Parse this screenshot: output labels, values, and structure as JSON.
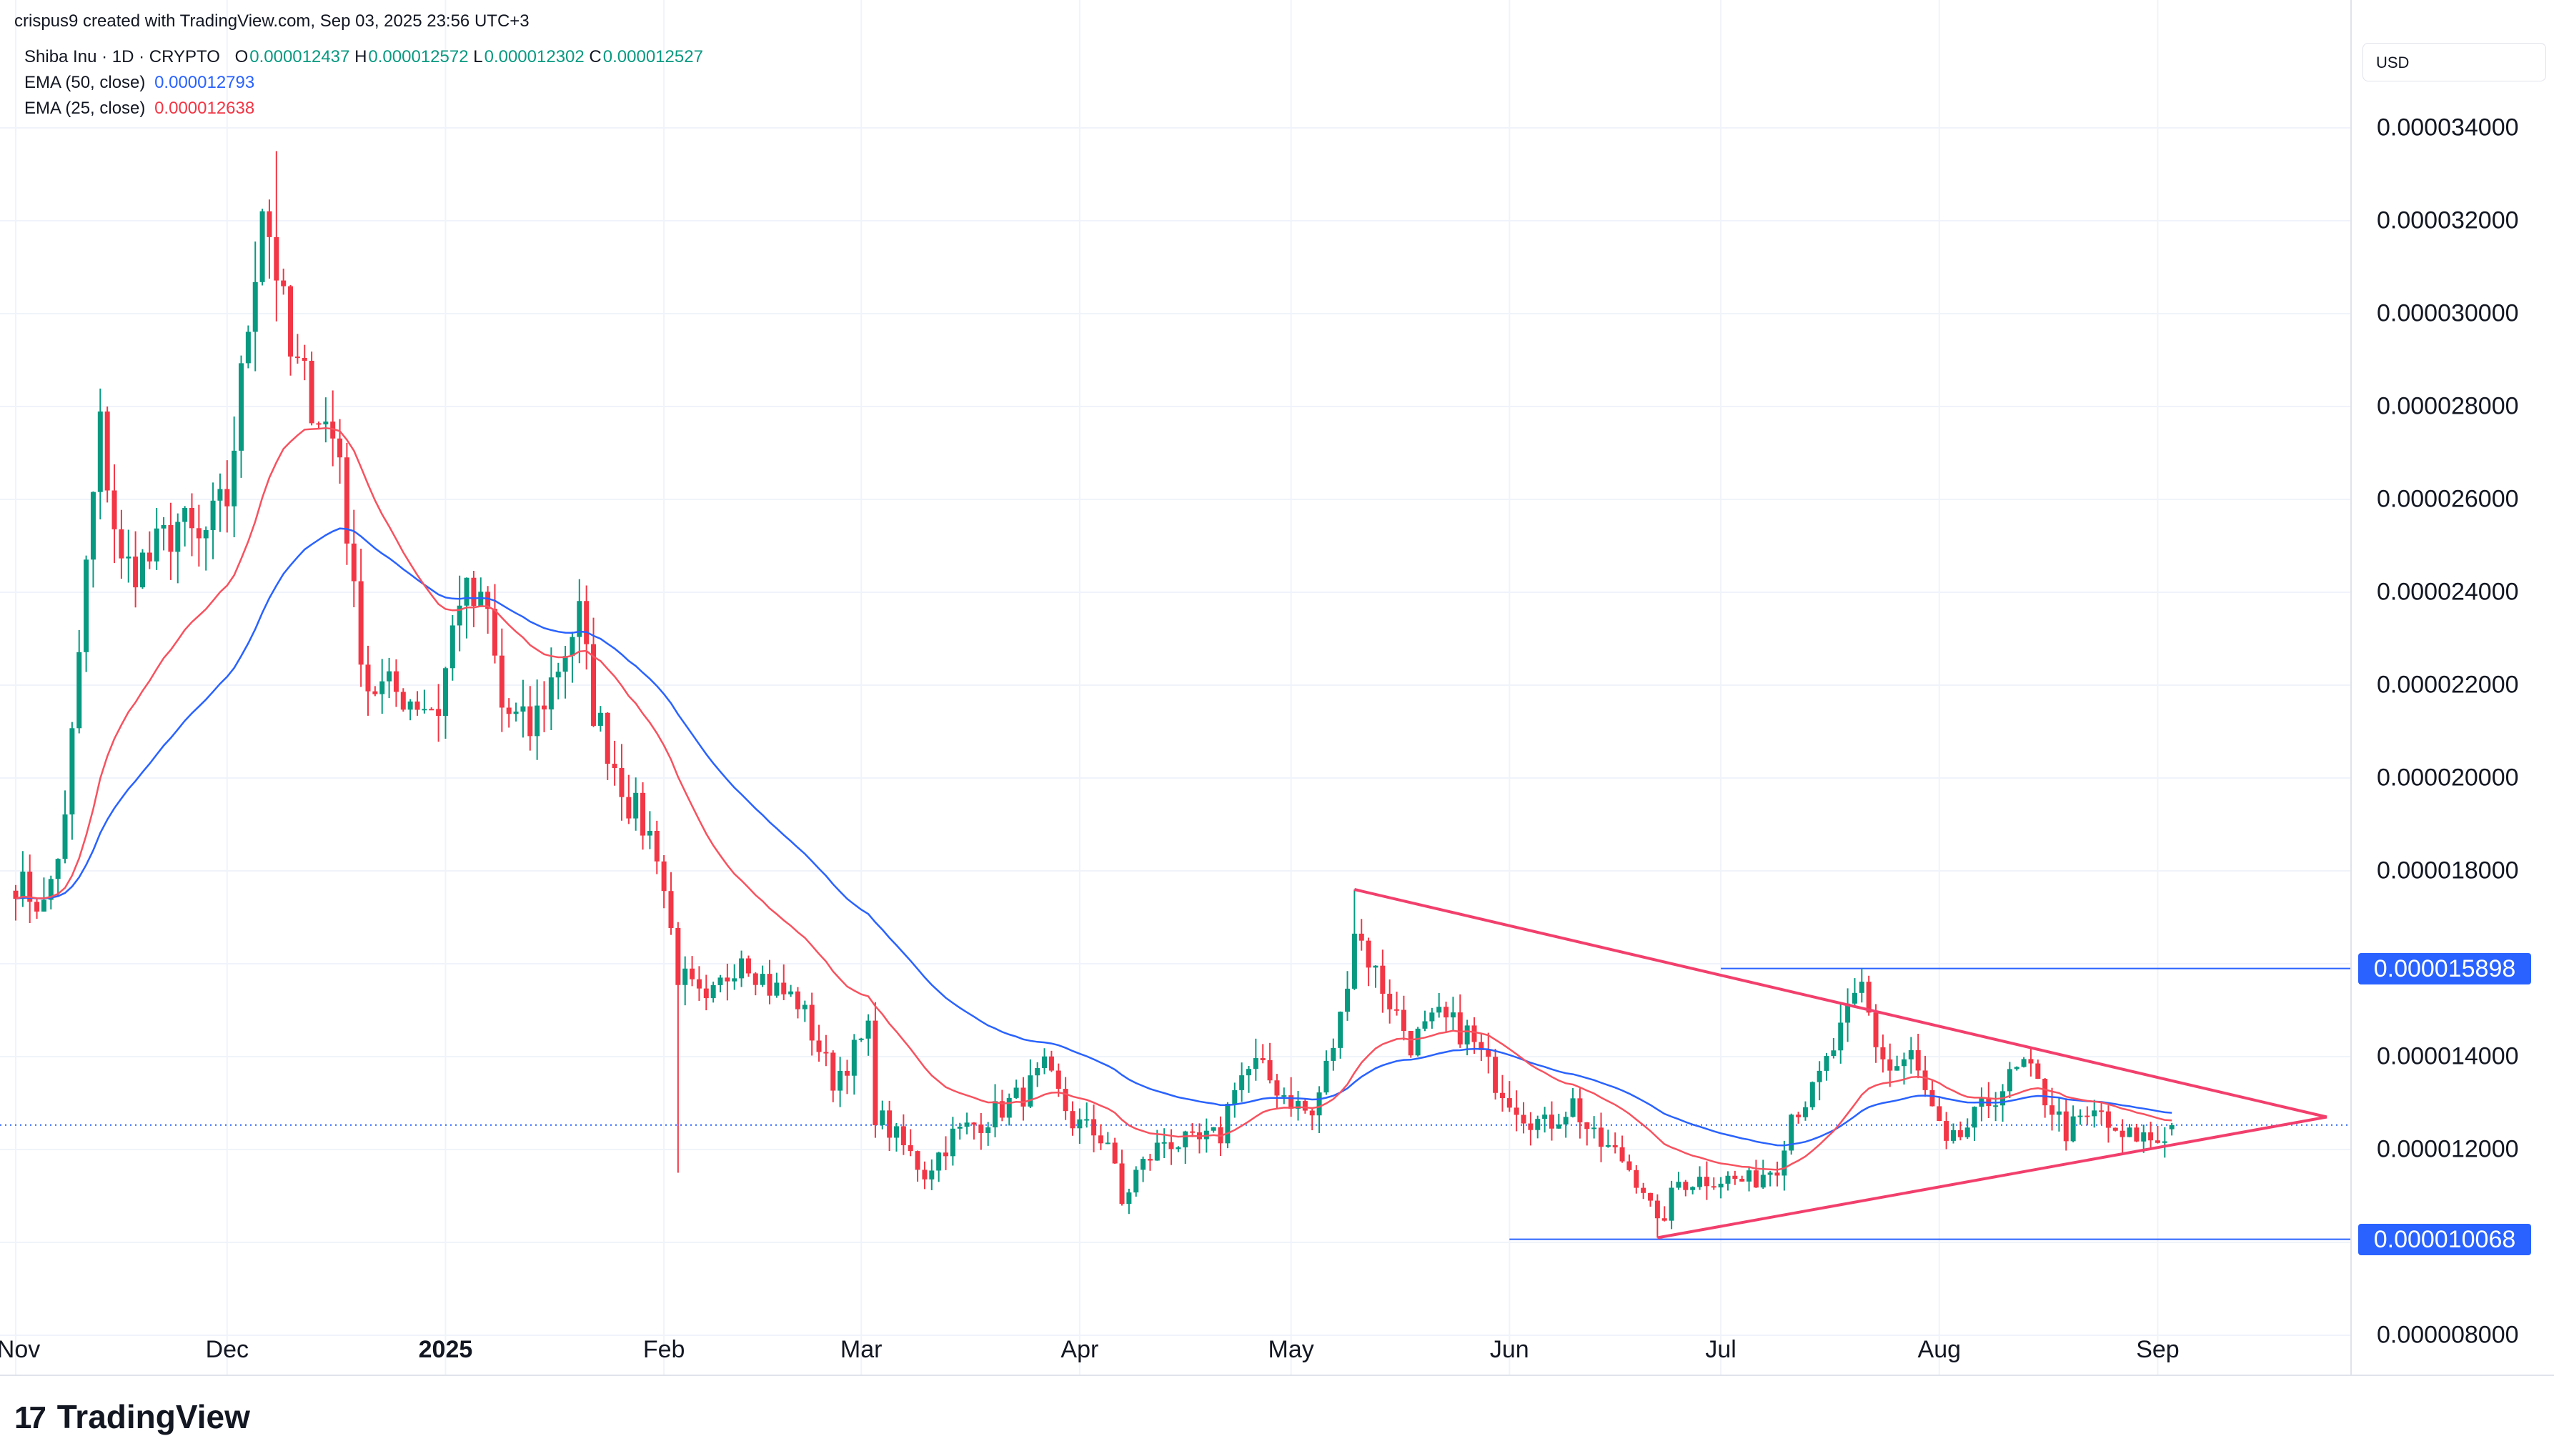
{
  "header": {
    "byline": "crispus9 created with TradingView.com, Sep 03, 2025 23:56 UTC+3"
  },
  "legend": {
    "symbol": "Shiba Inu · 1D · CRYPTO",
    "o_label": "O",
    "o_value": "0.000012437",
    "h_label": "H",
    "h_value": "0.000012572",
    "l_label": "L",
    "l_value": "0.000012302",
    "c_label": "C",
    "c_value": "0.000012527",
    "ema50_label": "EMA (50, close)",
    "ema50_value": "0.000012793",
    "ema25_label": "EMA (25, close)",
    "ema25_value": "0.000012638"
  },
  "currency": "USD",
  "logo_text": "TradingView",
  "colors": {
    "up": "#089981",
    "down": "#f23645",
    "ema50": "#2962ff",
    "ema25": "#f7525f",
    "trendline": "#f23f6c",
    "level": "#2962ff",
    "text": "#131722",
    "grid": "#f0f3fa"
  },
  "chart_data": {
    "type": "candlestick",
    "title": "Shiba Inu · 1D · CRYPTO",
    "ylim": [
      7.2e-06,
      3.58e-05
    ],
    "y_ticks": [
      "0.000034000",
      "0.000032000",
      "0.000030000",
      "0.000028000",
      "0.000026000",
      "0.000024000",
      "0.000022000",
      "0.000020000",
      "0.000018000",
      "0.000016000",
      "0.000014000",
      "0.000012000",
      "0.000010000",
      "0.000008000"
    ],
    "y_tick_values": [
      3.4e-05,
      3.2e-05,
      3e-05,
      2.8e-05,
      2.6e-05,
      2.4e-05,
      2.2e-05,
      2e-05,
      1.8e-05,
      1.6e-05,
      1.4e-05,
      1.2e-05,
      1e-05,
      8e-06
    ],
    "x_ticks": [
      {
        "label": "Nov",
        "date": "2024-11-01",
        "bold": false
      },
      {
        "label": "Dec",
        "date": "2024-12-01",
        "bold": false
      },
      {
        "label": "2025",
        "date": "2025-01-01",
        "bold": true
      },
      {
        "label": "Feb",
        "date": "2025-02-01",
        "bold": false
      },
      {
        "label": "Mar",
        "date": "2025-03-01",
        "bold": false
      },
      {
        "label": "Apr",
        "date": "2025-04-01",
        "bold": false
      },
      {
        "label": "May",
        "date": "2025-05-01",
        "bold": false
      },
      {
        "label": "Jun",
        "date": "2025-06-01",
        "bold": false
      },
      {
        "label": "Jul",
        "date": "2025-07-01",
        "bold": false
      },
      {
        "label": "Aug",
        "date": "2025-08-01",
        "bold": false
      },
      {
        "label": "Sep",
        "date": "2025-09-01",
        "bold": false
      }
    ],
    "start_date": "2024-11-01",
    "end_date": "2025-09-03",
    "close_anchors": [
      [
        "2024-11-01",
        1.78e-05
      ],
      [
        "2024-11-05",
        1.72e-05
      ],
      [
        "2024-11-08",
        1.9e-05
      ],
      [
        "2024-11-11",
        2.45e-05
      ],
      [
        "2024-11-13",
        2.75e-05
      ],
      [
        "2024-11-16",
        2.45e-05
      ],
      [
        "2024-11-20",
        2.47e-05
      ],
      [
        "2024-11-24",
        2.55e-05
      ],
      [
        "2024-11-27",
        2.5e-05
      ],
      [
        "2024-12-01",
        2.6e-05
      ],
      [
        "2024-12-03",
        2.85e-05
      ],
      [
        "2024-12-06",
        3.25e-05
      ],
      [
        "2024-12-08",
        3.1e-05
      ],
      [
        "2024-12-10",
        2.9e-05
      ],
      [
        "2024-12-12",
        2.85e-05
      ],
      [
        "2024-12-17",
        2.7e-05
      ],
      [
        "2024-12-19",
        2.38e-05
      ],
      [
        "2024-12-21",
        2.2e-05
      ],
      [
        "2024-12-26",
        2.18e-05
      ],
      [
        "2024-12-31",
        2.15e-05
      ],
      [
        "2025-01-03",
        2.4e-05
      ],
      [
        "2025-01-07",
        2.35e-05
      ],
      [
        "2025-01-09",
        2.15e-05
      ],
      [
        "2025-01-13",
        2.1e-05
      ],
      [
        "2025-01-18",
        2.28e-05
      ],
      [
        "2025-01-20",
        2.35e-05
      ],
      [
        "2025-01-22",
        2.15e-05
      ],
      [
        "2025-01-27",
        1.95e-05
      ],
      [
        "2025-01-31",
        1.85e-05
      ],
      [
        "2025-02-03",
        1.58e-05
      ],
      [
        "2025-02-07",
        1.5e-05
      ],
      [
        "2025-02-12",
        1.63e-05
      ],
      [
        "2025-02-16",
        1.55e-05
      ],
      [
        "2025-02-20",
        1.52e-05
      ],
      [
        "2025-02-25",
        1.35e-05
      ],
      [
        "2025-03-02",
        1.45e-05
      ],
      [
        "2025-03-03",
        1.28e-05
      ],
      [
        "2025-03-10",
        1.15e-05
      ],
      [
        "2025-03-14",
        1.23e-05
      ],
      [
        "2025-03-19",
        1.27e-05
      ],
      [
        "2025-03-24",
        1.32e-05
      ],
      [
        "2025-03-27",
        1.37e-05
      ],
      [
        "2025-03-31",
        1.26e-05
      ],
      [
        "2025-04-05",
        1.22e-05
      ],
      [
        "2025-04-07",
        1.08e-05
      ],
      [
        "2025-04-09",
        1.15e-05
      ],
      [
        "2025-04-13",
        1.22e-05
      ],
      [
        "2025-04-17",
        1.21e-05
      ],
      [
        "2025-04-21",
        1.23e-05
      ],
      [
        "2025-04-23",
        1.35e-05
      ],
      [
        "2025-04-26",
        1.38e-05
      ],
      [
        "2025-04-30",
        1.32e-05
      ],
      [
        "2025-05-04",
        1.27e-05
      ],
      [
        "2025-05-08",
        1.48e-05
      ],
      [
        "2025-05-10",
        1.68e-05
      ],
      [
        "2025-05-13",
        1.58e-05
      ],
      [
        "2025-05-18",
        1.43e-05
      ],
      [
        "2025-05-22",
        1.48e-05
      ],
      [
        "2025-05-26",
        1.45e-05
      ],
      [
        "2025-05-30",
        1.35e-05
      ],
      [
        "2025-06-03",
        1.28e-05
      ],
      [
        "2025-06-06",
        1.25e-05
      ],
      [
        "2025-06-10",
        1.3e-05
      ],
      [
        "2025-06-13",
        1.22e-05
      ],
      [
        "2025-06-17",
        1.18e-05
      ],
      [
        "2025-06-20",
        1.12e-05
      ],
      [
        "2025-06-22",
        1.03e-05
      ],
      [
        "2025-06-25",
        1.13e-05
      ],
      [
        "2025-06-30",
        1.14e-05
      ],
      [
        "2025-07-05",
        1.13e-05
      ],
      [
        "2025-07-09",
        1.17e-05
      ],
      [
        "2025-07-11",
        1.28e-05
      ],
      [
        "2025-07-14",
        1.32e-05
      ],
      [
        "2025-07-18",
        1.45e-05
      ],
      [
        "2025-07-21",
        1.55e-05
      ],
      [
        "2025-07-23",
        1.43e-05
      ],
      [
        "2025-07-25",
        1.37e-05
      ],
      [
        "2025-07-28",
        1.4e-05
      ],
      [
        "2025-07-31",
        1.28e-05
      ],
      [
        "2025-08-02",
        1.2e-05
      ],
      [
        "2025-08-04",
        1.23e-05
      ],
      [
        "2025-08-09",
        1.32e-05
      ],
      [
        "2025-08-13",
        1.38e-05
      ],
      [
        "2025-08-17",
        1.29e-05
      ],
      [
        "2025-08-19",
        1.24e-05
      ],
      [
        "2025-08-24",
        1.28e-05
      ],
      [
        "2025-08-26",
        1.22e-05
      ],
      [
        "2025-08-29",
        1.23e-05
      ],
      [
        "2025-09-01",
        1.22e-05
      ],
      [
        "2025-09-03",
        1.25e-05
      ]
    ],
    "extremes": [
      {
        "date": "2024-12-08",
        "high": 3.35e-05
      },
      {
        "date": "2025-02-03",
        "low": 1.15e-05
      },
      {
        "date": "2025-05-10",
        "high": 1.76e-05
      },
      {
        "date": "2025-06-22",
        "low": 1.01e-05
      },
      {
        "date": "2025-07-21",
        "high": 1.59e-05
      }
    ],
    "last_ohlc": {
      "o": 1.2437e-05,
      "h": 1.2572e-05,
      "l": 1.2302e-05,
      "c": 1.2527e-05
    },
    "ema": [
      {
        "name": "EMA (50, close)",
        "period": 50,
        "color": "#2962ff",
        "last": 1.2793e-05
      },
      {
        "name": "EMA (25, close)",
        "period": 25,
        "color": "#f7525f",
        "last": 1.2638e-05
      }
    ],
    "levels": [
      {
        "label": "0.000015898",
        "value": 1.5898e-05,
        "from": "2025-07-01",
        "color": "#2962ff"
      },
      {
        "label": "0.000010068",
        "value": 1.0068e-05,
        "from": "2025-06-01",
        "color": "#2962ff"
      }
    ],
    "current_price_line": 1.2527e-05,
    "trendlines": [
      {
        "from": [
          "2025-05-10",
          1.76e-05
        ],
        "to": [
          "2025-09-25",
          1.27e-05
        ]
      },
      {
        "from": [
          "2025-06-22",
          1.01e-05
        ],
        "to": [
          "2025-09-25",
          1.27e-05
        ]
      }
    ],
    "grid": true
  }
}
